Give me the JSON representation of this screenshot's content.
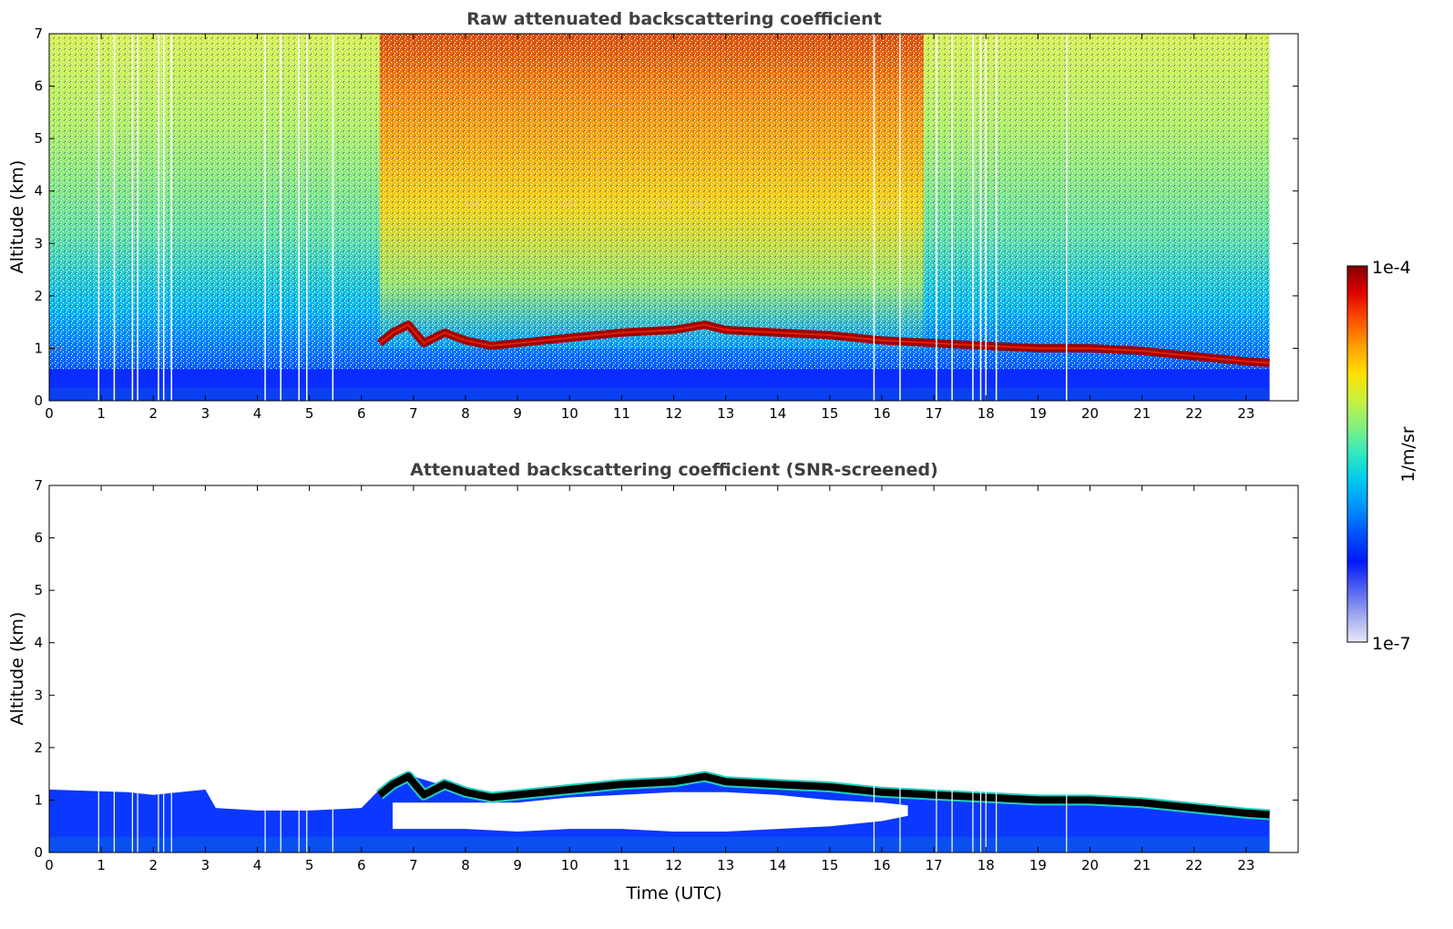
{
  "chart_data": [
    {
      "type": "heatmap",
      "title": "Raw attenuated backscattering coefficient",
      "xlabel": "",
      "ylabel": "Altitude (km)",
      "xlim": [
        0,
        24
      ],
      "ylim": [
        0,
        7
      ],
      "x_ticks": [
        "0",
        "1",
        "2",
        "3",
        "4",
        "5",
        "6",
        "7",
        "8",
        "9",
        "10",
        "11",
        "12",
        "13",
        "14",
        "15",
        "16",
        "17",
        "18",
        "19",
        "20",
        "21",
        "22",
        "23"
      ],
      "y_ticks": [
        "0",
        "1",
        "2",
        "3",
        "4",
        "5",
        "6",
        "7"
      ],
      "data_extent_hours": [
        0,
        23.45
      ],
      "layer_top_km": {
        "x": [
          6.35,
          6.6,
          6.9,
          7.2,
          7.6,
          8.0,
          8.5,
          9.0,
          10.0,
          11.0,
          12.0,
          12.6,
          13.0,
          14.0,
          15.0,
          16.0,
          17.0,
          18.0,
          19.0,
          20.0,
          21.0,
          21.5,
          22.0,
          23.0,
          23.45
        ],
        "y": [
          1.1,
          1.3,
          1.45,
          1.1,
          1.3,
          1.15,
          1.05,
          1.1,
          1.2,
          1.3,
          1.35,
          1.45,
          1.35,
          1.3,
          1.25,
          1.15,
          1.1,
          1.05,
          1.0,
          1.0,
          0.95,
          0.9,
          0.85,
          0.75,
          0.72
        ]
      },
      "noise_gaps_hours": [
        0.95,
        1.25,
        1.6,
        1.7,
        2.1,
        2.2,
        2.35,
        4.15,
        4.45,
        4.8,
        4.95,
        5.45,
        15.85,
        16.35,
        17.05,
        17.35,
        17.75,
        17.9,
        18.0,
        18.2,
        19.55
      ]
    },
    {
      "type": "heatmap",
      "title": "Attenuated backscattering coefficient (SNR-screened)",
      "xlabel": "Time (UTC)",
      "ylabel": "Altitude (km)",
      "xlim": [
        0,
        24
      ],
      "ylim": [
        0,
        7
      ],
      "x_ticks": [
        "0",
        "1",
        "2",
        "3",
        "4",
        "5",
        "6",
        "7",
        "8",
        "9",
        "10",
        "11",
        "12",
        "13",
        "14",
        "15",
        "16",
        "17",
        "18",
        "19",
        "20",
        "21",
        "22",
        "23"
      ],
      "y_ticks": [
        "0",
        "1",
        "2",
        "3",
        "4",
        "5",
        "6",
        "7"
      ],
      "data_extent_hours": [
        0,
        23.45
      ],
      "screened_top_km": {
        "x": [
          0,
          1.5,
          2.0,
          3.0,
          3.2,
          4.0,
          5.0,
          6.0,
          6.35,
          7.0,
          8.0,
          9.0,
          10.0,
          11.0,
          12.0,
          13.0,
          14.0,
          15.0,
          16.0,
          17.0,
          18.0,
          19.0,
          20.0,
          21.0,
          22.0,
          23.0,
          23.45
        ],
        "y": [
          1.2,
          1.15,
          1.1,
          1.2,
          0.85,
          0.8,
          0.8,
          0.85,
          1.2,
          1.45,
          1.15,
          1.15,
          1.2,
          1.3,
          1.4,
          1.4,
          1.3,
          1.25,
          1.15,
          1.1,
          1.05,
          1.0,
          1.0,
          0.95,
          0.85,
          0.8,
          0.8
        ]
      },
      "clear_gap_km": {
        "x": [
          6.6,
          8.0,
          9.0,
          10.0,
          11.0,
          12.0,
          13.0,
          14.0,
          15.0,
          16.0,
          16.5
        ],
        "bottom": [
          0.45,
          0.45,
          0.4,
          0.45,
          0.45,
          0.4,
          0.4,
          0.45,
          0.5,
          0.6,
          0.7
        ],
        "top": [
          0.95,
          0.95,
          0.95,
          1.05,
          1.1,
          1.15,
          1.15,
          1.1,
          1.0,
          0.95,
          0.9
        ]
      }
    }
  ],
  "colorbar": {
    "label": "1/m/sr",
    "max_label": "1e-4",
    "min_label": "1e-7",
    "scale": "log",
    "colormap": "jet",
    "colors": [
      "#e8e8f8",
      "#a0a8f0",
      "#5060f0",
      "#0018ff",
      "#0050ff",
      "#0090ff",
      "#00c8f0",
      "#30e8c0",
      "#80f080",
      "#c8f040",
      "#ffe000",
      "#ffa000",
      "#ff5000",
      "#e00000",
      "#800000"
    ]
  }
}
